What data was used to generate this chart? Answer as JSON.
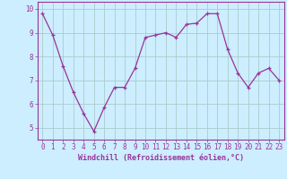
{
  "x": [
    0,
    1,
    2,
    3,
    4,
    5,
    6,
    7,
    8,
    9,
    10,
    11,
    12,
    13,
    14,
    15,
    16,
    17,
    18,
    19,
    20,
    21,
    22,
    23
  ],
  "y": [
    9.8,
    8.9,
    7.6,
    6.5,
    5.6,
    4.85,
    5.85,
    6.7,
    6.7,
    7.5,
    8.8,
    8.9,
    9.0,
    8.8,
    9.35,
    9.4,
    9.8,
    9.8,
    8.3,
    7.3,
    6.7,
    7.3,
    7.5,
    7.0
  ],
  "line_color": "#993399",
  "marker_color": "#993399",
  "bg_color": "#cceeff",
  "grid_color": "#aacccc",
  "xlabel": "Windchill (Refroidissement éolien,°C)",
  "xlabel_color": "#993399",
  "xlabel_fontsize": 6.0,
  "tick_color": "#993399",
  "tick_fontsize": 5.5,
  "ylim": [
    4.5,
    10.3
  ],
  "yticks": [
    5,
    6,
    7,
    8,
    9,
    10
  ],
  "xticks": [
    0,
    1,
    2,
    3,
    4,
    5,
    6,
    7,
    8,
    9,
    10,
    11,
    12,
    13,
    14,
    15,
    16,
    17,
    18,
    19,
    20,
    21,
    22,
    23
  ]
}
